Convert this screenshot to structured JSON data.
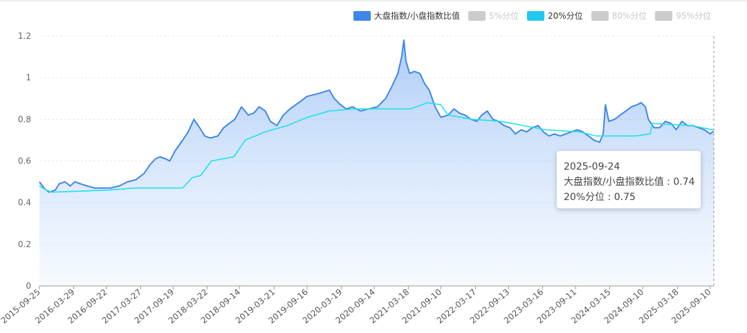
{
  "legend": [
    {
      "label": "大盘指数/小盘指数比值",
      "color": "#3e86ea",
      "active": true
    },
    {
      "label": "5%分位",
      "color": "#cccccc",
      "active": false
    },
    {
      "label": "20%分位",
      "color": "#20c9f0",
      "active": true
    },
    {
      "label": "80%分位",
      "color": "#cccccc",
      "active": false
    },
    {
      "label": "95%分位",
      "color": "#cccccc",
      "active": false
    }
  ],
  "tooltip": {
    "date": "2025-09-24",
    "ratio_label": "大盘指数/小盘指数比值 : 0.74",
    "p20_label": "20%分位 : 0.75"
  },
  "chart_data": {
    "type": "line",
    "x_range": [
      "2015-09-25",
      "2025-09-30"
    ],
    "ylim": [
      0,
      1.2
    ],
    "yticks": [
      "0",
      "0.2",
      "0.4",
      "0.6",
      "0.8",
      "1",
      "1.2"
    ],
    "xticks": [
      "2015-09-25",
      "2016-03-29",
      "2016-09-22",
      "2017-03-27",
      "2017-09-19",
      "2018-03-22",
      "2018-09-14",
      "2019-03-21",
      "2019-09-16",
      "2020-03-19",
      "2020-09-14",
      "2021-03-18",
      "2021-09-10",
      "2022-03-17",
      "2022-09-13",
      "2023-03-16",
      "2023-09-11",
      "2024-03-15",
      "2024-09-10",
      "2025-03-18",
      "2025-09-10"
    ],
    "grid": true,
    "legend_position": "top-right",
    "series": [
      {
        "name": "大盘指数/小盘指数比值",
        "color": "#3e86ea",
        "area": true,
        "points": [
          [
            "2015-09-25",
            0.5
          ],
          [
            "2015-10-20",
            0.47
          ],
          [
            "2015-11-15",
            0.45
          ],
          [
            "2015-12-20",
            0.46
          ],
          [
            "2016-01-10",
            0.49
          ],
          [
            "2016-02-10",
            0.5
          ],
          [
            "2016-03-10",
            0.48
          ],
          [
            "2016-04-05",
            0.5
          ],
          [
            "2016-05-05",
            0.49
          ],
          [
            "2016-06-10",
            0.48
          ],
          [
            "2016-07-20",
            0.47
          ],
          [
            "2016-09-01",
            0.47
          ],
          [
            "2016-10-15",
            0.47
          ],
          [
            "2016-12-01",
            0.48
          ],
          [
            "2017-01-15",
            0.5
          ],
          [
            "2017-03-01",
            0.51
          ],
          [
            "2017-04-15",
            0.54
          ],
          [
            "2017-05-15",
            0.58
          ],
          [
            "2017-06-15",
            0.61
          ],
          [
            "2017-07-10",
            0.62
          ],
          [
            "2017-08-10",
            0.61
          ],
          [
            "2017-09-01",
            0.6
          ],
          [
            "2017-10-01",
            0.65
          ],
          [
            "2017-11-10",
            0.7
          ],
          [
            "2017-12-10",
            0.74
          ],
          [
            "2018-01-10",
            0.8
          ],
          [
            "2018-02-10",
            0.76
          ],
          [
            "2018-03-10",
            0.72
          ],
          [
            "2018-04-10",
            0.71
          ],
          [
            "2018-05-20",
            0.72
          ],
          [
            "2018-06-20",
            0.76
          ],
          [
            "2018-07-20",
            0.78
          ],
          [
            "2018-08-20",
            0.8
          ],
          [
            "2018-09-25",
            0.86
          ],
          [
            "2018-11-01",
            0.82
          ],
          [
            "2018-12-01",
            0.83
          ],
          [
            "2018-12-30",
            0.86
          ],
          [
            "2019-02-01",
            0.84
          ],
          [
            "2019-03-01",
            0.79
          ],
          [
            "2019-04-05",
            0.77
          ],
          [
            "2019-05-10",
            0.82
          ],
          [
            "2019-06-15",
            0.85
          ],
          [
            "2019-08-01",
            0.88
          ],
          [
            "2019-09-16",
            0.91
          ],
          [
            "2019-11-01",
            0.92
          ],
          [
            "2019-12-10",
            0.93
          ],
          [
            "2020-01-15",
            0.94
          ],
          [
            "2020-02-10",
            0.9
          ],
          [
            "2020-03-15",
            0.87
          ],
          [
            "2020-04-15",
            0.85
          ],
          [
            "2020-05-20",
            0.86
          ],
          [
            "2020-07-01",
            0.84
          ],
          [
            "2020-08-15",
            0.85
          ],
          [
            "2020-10-01",
            0.86
          ],
          [
            "2020-11-15",
            0.9
          ],
          [
            "2020-12-20",
            0.96
          ],
          [
            "2021-01-20",
            1.02
          ],
          [
            "2021-02-10",
            1.1
          ],
          [
            "2021-02-22",
            1.18
          ],
          [
            "2021-03-05",
            1.08
          ],
          [
            "2021-03-25",
            1.02
          ],
          [
            "2021-04-20",
            1.03
          ],
          [
            "2021-05-20",
            1.02
          ],
          [
            "2021-06-15",
            0.97
          ],
          [
            "2021-07-10",
            0.94
          ],
          [
            "2021-08-10",
            0.86
          ],
          [
            "2021-09-10",
            0.81
          ],
          [
            "2021-10-20",
            0.82
          ],
          [
            "2021-11-20",
            0.85
          ],
          [
            "2021-12-20",
            0.83
          ],
          [
            "2022-01-20",
            0.82
          ],
          [
            "2022-02-20",
            0.8
          ],
          [
            "2022-03-25",
            0.79
          ],
          [
            "2022-04-20",
            0.82
          ],
          [
            "2022-05-20",
            0.84
          ],
          [
            "2022-06-20",
            0.8
          ],
          [
            "2022-07-20",
            0.79
          ],
          [
            "2022-08-20",
            0.77
          ],
          [
            "2022-09-20",
            0.76
          ],
          [
            "2022-10-20",
            0.73
          ],
          [
            "2022-11-20",
            0.75
          ],
          [
            "2022-12-20",
            0.74
          ],
          [
            "2023-01-20",
            0.76
          ],
          [
            "2023-02-20",
            0.77
          ],
          [
            "2023-03-20",
            0.74
          ],
          [
            "2023-04-20",
            0.72
          ],
          [
            "2023-05-20",
            0.73
          ],
          [
            "2023-06-20",
            0.72
          ],
          [
            "2023-07-20",
            0.73
          ],
          [
            "2023-08-20",
            0.74
          ],
          [
            "2023-09-20",
            0.75
          ],
          [
            "2023-10-20",
            0.74
          ],
          [
            "2023-11-20",
            0.72
          ],
          [
            "2023-12-20",
            0.7
          ],
          [
            "2024-01-20",
            0.69
          ],
          [
            "2024-02-08",
            0.73
          ],
          [
            "2024-02-20",
            0.87
          ],
          [
            "2024-03-10",
            0.79
          ],
          [
            "2024-04-10",
            0.8
          ],
          [
            "2024-05-10",
            0.82
          ],
          [
            "2024-06-10",
            0.84
          ],
          [
            "2024-07-10",
            0.86
          ],
          [
            "2024-08-10",
            0.87
          ],
          [
            "2024-09-01",
            0.88
          ],
          [
            "2024-09-24",
            0.86
          ],
          [
            "2024-10-10",
            0.8
          ],
          [
            "2024-11-10",
            0.76
          ],
          [
            "2024-12-10",
            0.76
          ],
          [
            "2025-01-10",
            0.79
          ],
          [
            "2025-02-10",
            0.78
          ],
          [
            "2025-03-10",
            0.75
          ],
          [
            "2025-04-10",
            0.79
          ],
          [
            "2025-05-10",
            0.77
          ],
          [
            "2025-06-10",
            0.77
          ],
          [
            "2025-07-10",
            0.76
          ],
          [
            "2025-08-10",
            0.75
          ],
          [
            "2025-09-10",
            0.73
          ],
          [
            "2025-09-24",
            0.74
          ],
          [
            "2025-09-30",
            0.74
          ]
        ]
      },
      {
        "name": "20%分位",
        "color": "#20e0ec",
        "area": false,
        "points": [
          [
            "2015-09-25",
            0.48
          ],
          [
            "2015-11-01",
            0.46
          ],
          [
            "2015-12-01",
            0.45
          ],
          [
            "2016-10-01",
            0.46
          ],
          [
            "2017-03-01",
            0.47
          ],
          [
            "2017-11-10",
            0.47
          ],
          [
            "2018-01-01",
            0.52
          ],
          [
            "2018-02-15",
            0.53
          ],
          [
            "2018-04-15",
            0.6
          ],
          [
            "2018-08-15",
            0.62
          ],
          [
            "2018-10-15",
            0.7
          ],
          [
            "2019-02-01",
            0.74
          ],
          [
            "2019-06-01",
            0.77
          ],
          [
            "2019-09-20",
            0.81
          ],
          [
            "2020-01-15",
            0.84
          ],
          [
            "2020-06-01",
            0.85
          ],
          [
            "2021-04-01",
            0.85
          ],
          [
            "2021-07-01",
            0.88
          ],
          [
            "2021-09-10",
            0.87
          ],
          [
            "2021-10-20",
            0.82
          ],
          [
            "2022-03-01",
            0.8
          ],
          [
            "2022-08-01",
            0.79
          ],
          [
            "2022-12-01",
            0.77
          ],
          [
            "2023-04-01",
            0.75
          ],
          [
            "2023-10-01",
            0.74
          ],
          [
            "2024-01-01",
            0.72
          ],
          [
            "2024-08-01",
            0.72
          ],
          [
            "2024-10-20",
            0.73
          ],
          [
            "2024-11-01",
            0.78
          ],
          [
            "2025-06-01",
            0.77
          ],
          [
            "2025-09-24",
            0.75
          ],
          [
            "2025-09-30",
            0.75
          ]
        ]
      }
    ]
  }
}
